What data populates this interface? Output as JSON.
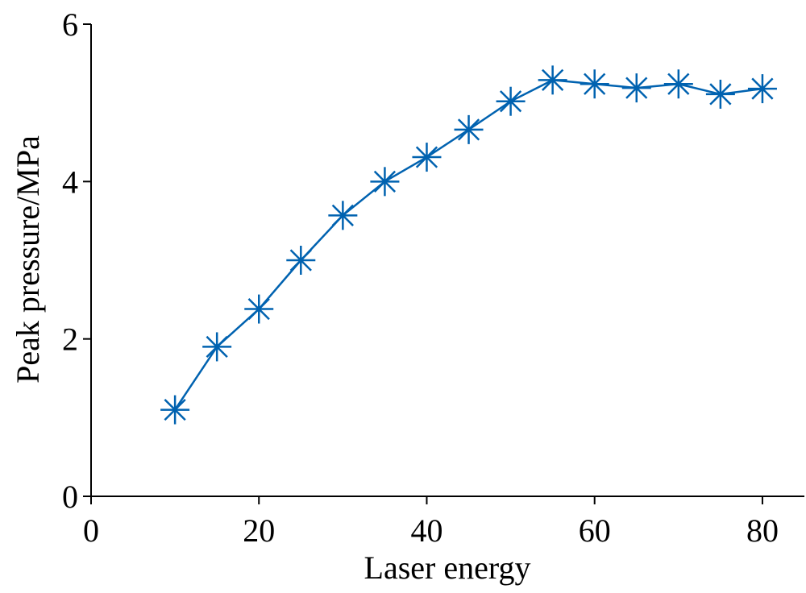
{
  "chart_data": {
    "type": "line",
    "title": "",
    "xlabel": "Laser energy",
    "ylabel": "Peak pressure/MPa",
    "xlim": [
      0,
      85
    ],
    "ylim": [
      0,
      6
    ],
    "x_ticks": [
      0,
      20,
      40,
      60,
      80
    ],
    "y_ticks": [
      0,
      2,
      4,
      6
    ],
    "grid": false,
    "legend": "none",
    "marker": "asterisk",
    "color": "#0062b0",
    "series": [
      {
        "x": [
          10,
          15,
          20,
          25,
          30,
          35,
          40,
          45,
          50,
          55,
          60,
          65,
          70,
          75,
          80
        ],
        "values": [
          1.1,
          1.9,
          2.38,
          3.0,
          3.57,
          4.0,
          4.31,
          4.66,
          5.02,
          5.29,
          5.24,
          5.19,
          5.24,
          5.11,
          5.18
        ]
      }
    ]
  }
}
